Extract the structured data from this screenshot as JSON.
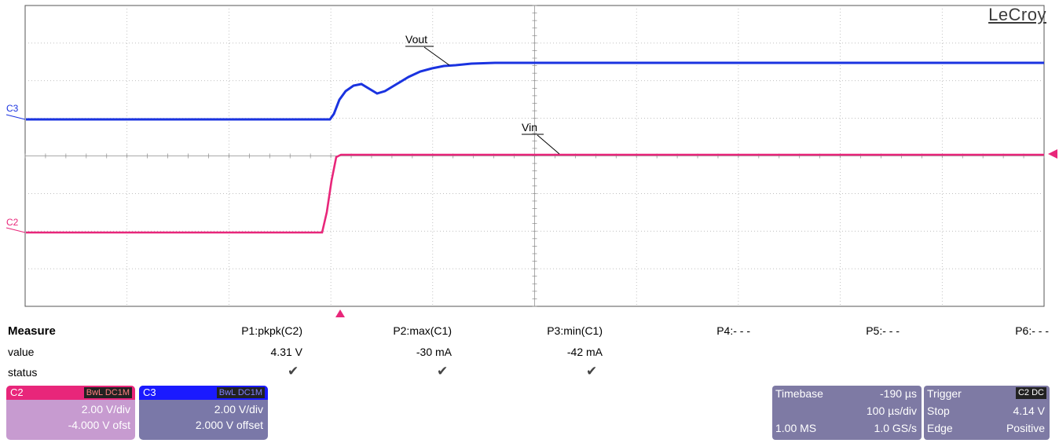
{
  "brand": "LeCroy",
  "channels": {
    "c3": {
      "label": "C3",
      "color": "#1a33e0",
      "trace_label": "Vout"
    },
    "c2": {
      "label": "C2",
      "color": "#e8267a",
      "trace_label": "Vin"
    }
  },
  "measure": {
    "title": "Measure",
    "row_value": "value",
    "row_status": "status",
    "params": [
      {
        "name": "P1:pkpk(C2)",
        "value": "4.31 V",
        "status": "✔"
      },
      {
        "name": "P2:max(C1)",
        "value": "-30 mA",
        "status": "✔"
      },
      {
        "name": "P3:min(C1)",
        "value": "-42 mA",
        "status": "✔"
      },
      {
        "name": "P4:- - -",
        "value": "",
        "status": ""
      },
      {
        "name": "P5:- - -",
        "value": "",
        "status": ""
      },
      {
        "name": "P6:- - -",
        "value": "",
        "status": ""
      }
    ]
  },
  "channel_boxes": [
    {
      "name": "C2",
      "tags": "BwL DC1M",
      "scale": "2.00 V/div",
      "offset": "-4.000 V ofst",
      "accent": "#e8267a"
    },
    {
      "name": "C3",
      "tags": "BwL DC1M",
      "scale": "2.00 V/div",
      "offset": "2.000 V offset",
      "accent": "#1a1aff"
    }
  ],
  "timebase": {
    "label": "Timebase",
    "delay": "-190 µs",
    "per_div": "100 µs/div",
    "samples": "1.00 MS",
    "rate": "1.0 GS/s"
  },
  "trigger": {
    "label": "Trigger",
    "source": "C2 DC",
    "mode": "Stop",
    "level": "4.14 V",
    "type": "Edge",
    "slope": "Positive"
  }
}
